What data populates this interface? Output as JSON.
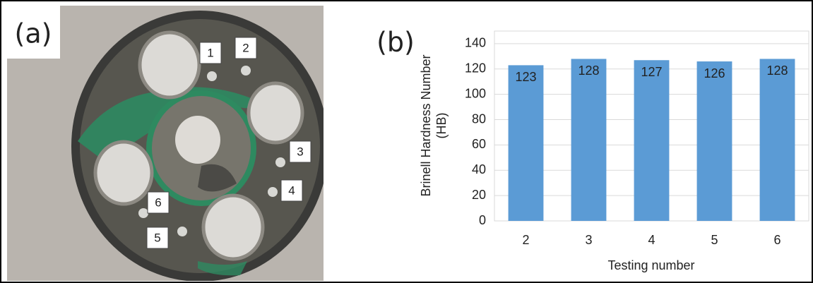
{
  "photo": {
    "label": "(a)",
    "markers": [
      "1",
      "2",
      "3",
      "4",
      "5",
      "6"
    ]
  },
  "chart_data": {
    "type": "bar",
    "panel_label": "(b)",
    "categories": [
      "2",
      "3",
      "4",
      "5",
      "6"
    ],
    "values": [
      123,
      128,
      127,
      126,
      128
    ],
    "color": "#5b9bd5",
    "xlabel": "Testing number",
    "ylabel": [
      "Brinell Hardness Number",
      "(HB)"
    ],
    "ylim": [
      0,
      150
    ],
    "yticks": [
      0,
      20,
      40,
      60,
      80,
      100,
      120,
      140
    ],
    "grid": true
  }
}
